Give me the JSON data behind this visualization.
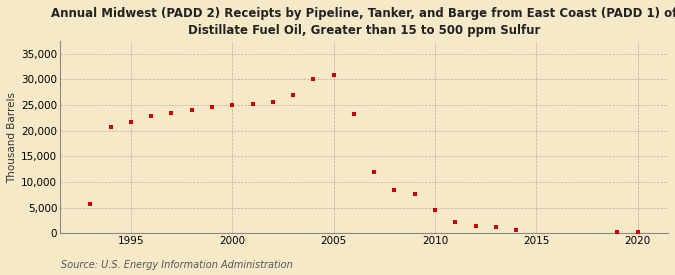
{
  "title": "Annual Midwest (PADD 2) Receipts by Pipeline, Tanker, and Barge from East Coast (PADD 1) of\nDistillate Fuel Oil, Greater than 15 to 500 ppm Sulfur",
  "ylabel": "Thousand Barrels",
  "source": "Source: U.S. Energy Information Administration",
  "background_color": "#f5e9c8",
  "plot_background_color": "#f5e9c8",
  "marker_color": "#cc0000",
  "years": [
    1993,
    1994,
    1995,
    1996,
    1997,
    1998,
    1999,
    2000,
    2001,
    2002,
    2003,
    2004,
    2005,
    2006,
    2007,
    2008,
    2009,
    2010,
    2011,
    2012,
    2013,
    2014,
    2019,
    2020
  ],
  "values": [
    5700,
    20800,
    21700,
    22900,
    23400,
    24000,
    24700,
    25000,
    25200,
    25600,
    26900,
    30000,
    30800,
    23200,
    12000,
    8500,
    7700,
    4600,
    2200,
    1500,
    1200,
    700,
    200,
    300
  ],
  "xlim": [
    1991.5,
    2021.5
  ],
  "ylim": [
    0,
    37500
  ],
  "yticks": [
    0,
    5000,
    10000,
    15000,
    20000,
    25000,
    30000,
    35000
  ],
  "xticks": [
    1995,
    2000,
    2005,
    2010,
    2015,
    2020
  ],
  "title_fontsize": 8.5,
  "label_fontsize": 7.5,
  "tick_fontsize": 7.5,
  "source_fontsize": 7.0
}
